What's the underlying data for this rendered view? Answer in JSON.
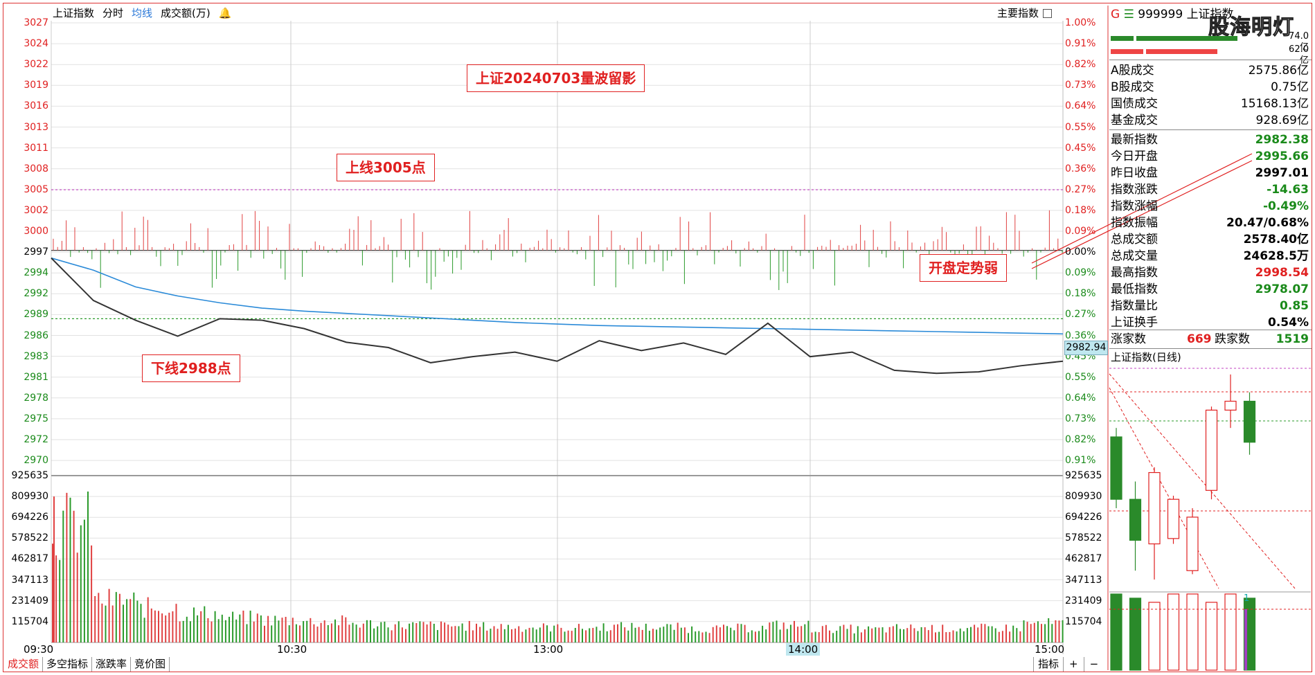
{
  "header": {
    "title": "上证指数",
    "items": [
      "分时",
      "均线",
      "成交额(万)"
    ],
    "right_label": "主要指数"
  },
  "annotations": {
    "top": "上证20240703量波留影",
    "upper": "上线3005点",
    "lower": "下线2988点",
    "side": "开盘定势弱"
  },
  "price_axis": {
    "left": [
      "3027",
      "3024",
      "3022",
      "3019",
      "3016",
      "3013",
      "3011",
      "3008",
      "3005",
      "3002",
      "3000",
      "2997",
      "2994",
      "2992",
      "2989",
      "2986",
      "2983",
      "2981",
      "2978",
      "2975",
      "2972",
      "2970"
    ],
    "right": [
      "1.00%",
      "0.91%",
      "0.82%",
      "0.73%",
      "0.64%",
      "0.55%",
      "0.45%",
      "0.36%",
      "0.27%",
      "0.18%",
      "0.09%",
      "0.00%",
      "0.09%",
      "0.18%",
      "0.27%",
      "0.36%",
      "0.45%",
      "0.55%",
      "0.64%",
      "0.73%",
      "0.82%",
      "0.91%"
    ],
    "current_tag": "2982.94"
  },
  "volume_axis": [
    "925635",
    "809930",
    "694226",
    "578522",
    "462817",
    "347113",
    "231409",
    "115704"
  ],
  "time_axis": [
    "09:30",
    "10:30",
    "13:00",
    "14:00",
    "15:00"
  ],
  "bottom_tabs": [
    "成交额",
    "多空指标",
    "涨跌率",
    "竞价图"
  ],
  "bottom_right": [
    "指标",
    "+",
    "−"
  ],
  "right_panel": {
    "code_line": {
      "g": "G",
      "menu": "☰",
      "code": "999999",
      "name": "上证指数"
    },
    "bar_values": [
      "74.0亿",
      "62.0亿"
    ],
    "turnover": [
      {
        "k": "A股成交",
        "v": "2575.86亿"
      },
      {
        "k": "B股成交",
        "v": "0.75亿"
      },
      {
        "k": "国债成交",
        "v": "15168.13亿"
      },
      {
        "k": "基金成交",
        "v": "928.69亿"
      }
    ],
    "quotes": [
      {
        "k": "最新指数",
        "v": "2982.38",
        "c": "#1a8a1a"
      },
      {
        "k": "今日开盘",
        "v": "2995.66",
        "c": "#1a8a1a"
      },
      {
        "k": "昨日收盘",
        "v": "2997.01",
        "c": "#000000"
      },
      {
        "k": "指数涨跌",
        "v": "-14.63",
        "c": "#1a8a1a"
      },
      {
        "k": "指数涨幅",
        "v": "-0.49%",
        "c": "#1a8a1a"
      },
      {
        "k": "指数振幅",
        "v": "20.47/0.68%",
        "c": "#000000"
      },
      {
        "k": "总成交额",
        "v": "2578.40亿",
        "c": "#000000"
      },
      {
        "k": "总成交量",
        "v": "24628.5万",
        "c": "#000000"
      },
      {
        "k": "最高指数",
        "v": "2998.54",
        "c": "#e02020"
      },
      {
        "k": "最低指数",
        "v": "2978.07",
        "c": "#1a8a1a"
      },
      {
        "k": "指数量比",
        "v": "0.85",
        "c": "#1a8a1a"
      },
      {
        "k": "上证换手",
        "v": "0.54%",
        "c": "#000000"
      }
    ],
    "breadth": {
      "up_label": "涨家数",
      "up": "669",
      "down_label": "跌家数",
      "down": "1519"
    },
    "daily_title": "上证指数(日线)",
    "vol_mark": "1"
  },
  "watermark": "股海明灯",
  "chart_data": {
    "type": "line",
    "title": "",
    "xlabel": "",
    "ylabel": "",
    "x": [
      "09:30",
      "09:40",
      "09:50",
      "10:00",
      "10:10",
      "10:20",
      "10:30",
      "10:40",
      "10:50",
      "11:00",
      "11:10",
      "11:20",
      "11:30",
      "13:10",
      "13:20",
      "13:30",
      "13:40",
      "13:50",
      "14:00",
      "14:10",
      "14:20",
      "14:30",
      "14:40",
      "14:50",
      "15:00"
    ],
    "series": [
      {
        "values": [
          2996.0,
          2990.4,
          2987.8,
          2985.7,
          2988.0,
          2987.8,
          2986.7,
          2984.9,
          2984.2,
          2982.2,
          2983.0,
          2983.6,
          2982.4,
          2985.1,
          2983.8,
          2984.8,
          2983.3,
          2987.4,
          2983.0,
          2983.6,
          2981.2,
          2980.8,
          2981.0,
          2981.8,
          2982.4
        ]
      },
      {
        "values": [
          2996.0,
          2994.4,
          2992.2,
          2991.0,
          2990.1,
          2989.4,
          2989.0,
          2988.7,
          2988.4,
          2988.1,
          2987.8,
          2987.5,
          2987.3,
          2987.1,
          2987.0,
          2986.9,
          2986.8,
          2986.7,
          2986.6,
          2986.5,
          2986.4,
          2986.3,
          2986.2,
          2986.1,
          2986.0
        ]
      }
    ],
    "volume": [
      809930,
      290000,
      240000,
      200000,
      170000,
      155000,
      145000,
      130000,
      120000,
      115000,
      110000,
      105000,
      100000,
      110000,
      105000,
      95000,
      100000,
      120000,
      95000,
      90000,
      100000,
      95000,
      100000,
      130000,
      300000
    ],
    "ylim": [
      2969.6,
      3027.0
    ],
    "reference_lines": {
      "upper": 3005,
      "lower": 2988,
      "prev_close": 2997.01
    },
    "daily_candles": [
      {
        "open": 3015,
        "close": 2980,
        "high": 3020,
        "low": 2975
      },
      {
        "open": 2980,
        "close": 2957,
        "high": 2990,
        "low": 2940
      },
      {
        "open": 2955,
        "close": 2995,
        "high": 2998,
        "low": 2935
      },
      {
        "open": 2958,
        "close": 2980,
        "high": 2982,
        "low": 2955
      },
      {
        "open": 2940,
        "close": 2970,
        "high": 2975,
        "low": 2938
      },
      {
        "open": 2985,
        "close": 3030,
        "high": 3032,
        "low": 2980
      },
      {
        "open": 3030,
        "close": 3035,
        "high": 3050,
        "low": 3020
      },
      {
        "open": 3035,
        "close": 3012,
        "high": 3040,
        "low": 3005
      }
    ]
  }
}
